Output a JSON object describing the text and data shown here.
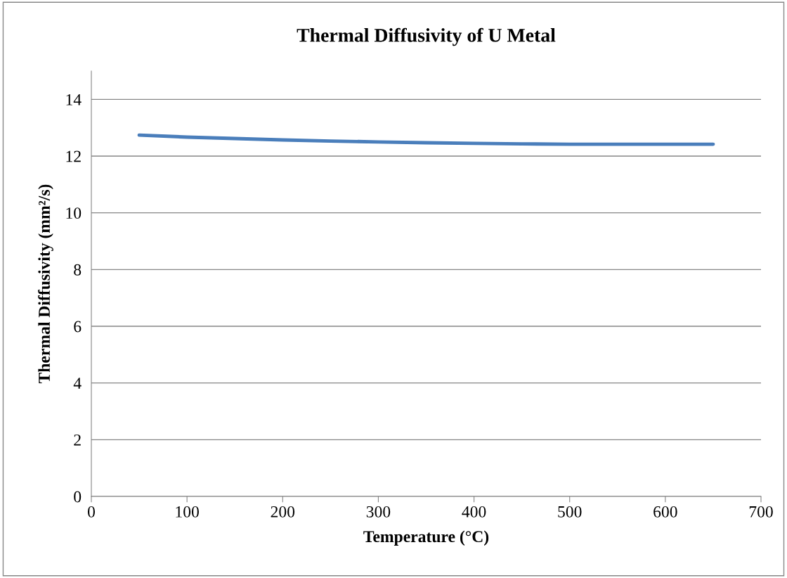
{
  "chart_data": {
    "type": "line",
    "title": "Thermal Diffusivity of U Metal",
    "xlabel": "Temperature (°C)",
    "ylabel": "Thermal Diffusivity (mm²/s)",
    "x": [
      50,
      100,
      150,
      200,
      250,
      300,
      350,
      400,
      450,
      500,
      550,
      600,
      650
    ],
    "series": [
      {
        "color": "#4a7ebb",
        "values": [
          12.74,
          12.67,
          12.62,
          12.57,
          12.53,
          12.5,
          12.47,
          12.45,
          12.43,
          12.42,
          12.42,
          12.42,
          12.42
        ]
      }
    ],
    "xlim": [
      0,
      700
    ],
    "xticks": [
      0,
      100,
      200,
      300,
      400,
      500,
      600,
      700
    ],
    "ylim": [
      0,
      15
    ],
    "yticks": [
      0,
      2,
      4,
      6,
      8,
      10,
      12,
      14
    ],
    "grid": "y",
    "legend": false
  }
}
